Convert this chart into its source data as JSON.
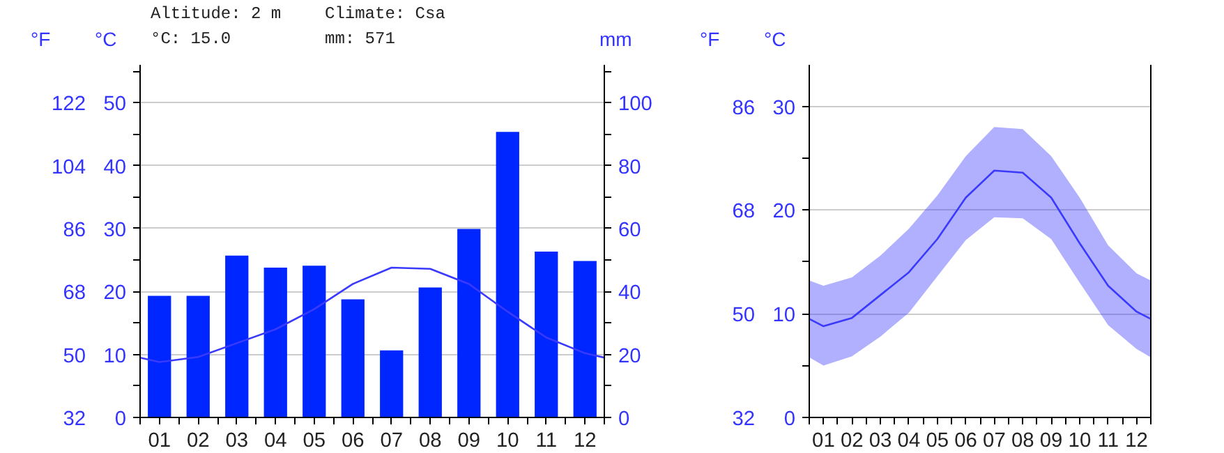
{
  "chart_data": [
    {
      "type": "bar",
      "annotations": [
        "Altitude: 2 m",
        "Climate: Csa",
        "°C: 15.0",
        "mm: 571"
      ],
      "ylabel": "°C",
      "y2label": "mm",
      "y3label": "°F",
      "x": [
        1,
        2,
        3,
        4,
        5,
        6,
        7,
        8,
        9,
        10,
        11,
        12
      ],
      "xlim": [
        0.5,
        12.5
      ],
      "xticks": [
        {
          "value": 0.5,
          "label": null
        },
        {
          "value": 1,
          "label": "01"
        },
        {
          "value": 1.5,
          "label": null
        },
        {
          "value": 2,
          "label": "02"
        },
        {
          "value": 2.5,
          "label": null
        },
        {
          "value": 3,
          "label": "03"
        },
        {
          "value": 3.5,
          "label": null
        },
        {
          "value": 4,
          "label": "04"
        },
        {
          "value": 4.5,
          "label": null
        },
        {
          "value": 5,
          "label": "05"
        },
        {
          "value": 5.5,
          "label": null
        },
        {
          "value": 6,
          "label": "06"
        },
        {
          "value": 6.5,
          "label": null
        },
        {
          "value": 7,
          "label": "07"
        },
        {
          "value": 7.5,
          "label": null
        },
        {
          "value": 8,
          "label": "08"
        },
        {
          "value": 8.5,
          "label": null
        },
        {
          "value": 9,
          "label": "09"
        },
        {
          "value": 9.5,
          "label": null
        },
        {
          "value": 10,
          "label": "10"
        },
        {
          "value": 10.5,
          "label": null
        },
        {
          "value": 11,
          "label": "11"
        },
        {
          "value": 11.5,
          "label": null
        },
        {
          "value": 12,
          "label": "12"
        },
        {
          "value": 12.5,
          "label": null
        }
      ],
      "ylim": [
        0,
        56
      ],
      "yticks": [
        0,
        {
          "value": 5,
          "label": null
        },
        10,
        {
          "value": 15,
          "label": null
        },
        20,
        {
          "value": 25,
          "label": null
        },
        30,
        {
          "value": 35,
          "label": null
        },
        40,
        {
          "value": 45,
          "label": null
        },
        50,
        {
          "value": 55,
          "label": null
        }
      ],
      "y2lim": [
        0,
        112
      ],
      "y2ticks": [
        0,
        {
          "value": 10,
          "label": null
        },
        20,
        {
          "value": 30,
          "label": null
        },
        40,
        {
          "value": 50,
          "label": null
        },
        60,
        {
          "value": 70,
          "label": null
        },
        80,
        {
          "value": 90,
          "label": null
        },
        100,
        {
          "value": 110,
          "label": null
        }
      ],
      "y3lim": [
        32,
        132.8
      ],
      "y3ticks": [
        32,
        50,
        68,
        86,
        104,
        122
      ],
      "grid": "y",
      "series": [
        {
          "axis": "y2",
          "color": "#0026ff",
          "values": [
            38.6,
            38.6,
            51.4,
            47.6,
            48.2,
            37.5,
            21.3,
            41.3,
            59.9,
            90.7,
            52.7,
            49.7
          ]
        },
        {
          "type": "line",
          "color": "#3a3aff",
          "x": [
            0.5,
            1,
            2,
            3,
            4,
            5,
            6,
            7,
            8,
            9,
            10,
            11,
            12,
            12.5
          ],
          "values": [
            9.5,
            8.8,
            9.6,
            11.8,
            14.0,
            17.2,
            21.2,
            23.8,
            23.6,
            21.2,
            16.8,
            12.7,
            10.2,
            9.5
          ]
        }
      ]
    },
    {
      "type": "line",
      "ylabel": "°C",
      "y3label": "°F",
      "x": [
        0.5,
        1,
        2,
        3,
        4,
        5,
        6,
        7,
        8,
        9,
        10,
        11,
        12,
        12.5
      ],
      "xlim": [
        0.5,
        12.5
      ],
      "xticks": [
        {
          "value": 0.5,
          "label": null
        },
        {
          "value": 1,
          "label": "01"
        },
        {
          "value": 1.5,
          "label": null
        },
        {
          "value": 2,
          "label": "02"
        },
        {
          "value": 2.5,
          "label": null
        },
        {
          "value": 3,
          "label": "03"
        },
        {
          "value": 3.5,
          "label": null
        },
        {
          "value": 4,
          "label": "04"
        },
        {
          "value": 4.5,
          "label": null
        },
        {
          "value": 5,
          "label": "05"
        },
        {
          "value": 5.5,
          "label": null
        },
        {
          "value": 6,
          "label": "06"
        },
        {
          "value": 6.5,
          "label": null
        },
        {
          "value": 7,
          "label": "07"
        },
        {
          "value": 7.5,
          "label": null
        },
        {
          "value": 8,
          "label": "08"
        },
        {
          "value": 8.5,
          "label": null
        },
        {
          "value": 9,
          "label": "09"
        },
        {
          "value": 9.5,
          "label": null
        },
        {
          "value": 10,
          "label": "10"
        },
        {
          "value": 10.5,
          "label": null
        },
        {
          "value": 11,
          "label": "11"
        },
        {
          "value": 11.5,
          "label": null
        },
        {
          "value": 12,
          "label": "12"
        },
        {
          "value": 12.5,
          "label": null
        }
      ],
      "ylim": [
        0,
        34
      ],
      "yticks": [
        0,
        {
          "value": 5,
          "label": null
        },
        10,
        {
          "value": 15,
          "label": null
        },
        20,
        {
          "value": 25,
          "label": null
        },
        30
      ],
      "y3lim": [
        32,
        93.2
      ],
      "y3ticks": [
        32,
        50,
        68,
        86
      ],
      "grid": "y",
      "series": [
        {
          "color": "#3a3aff",
          "values": [
            9.5,
            8.8,
            9.6,
            11.8,
            14.0,
            17.2,
            21.2,
            23.8,
            23.6,
            21.2,
            16.8,
            12.7,
            10.2,
            9.5
          ],
          "lower": [
            5.8,
            5.0,
            5.9,
            7.8,
            10.1,
            13.6,
            17.1,
            19.3,
            19.2,
            17.2,
            13.0,
            8.9,
            6.6,
            5.8
          ],
          "upper": [
            13.2,
            12.7,
            13.5,
            15.6,
            18.2,
            21.4,
            25.2,
            28.0,
            27.8,
            25.2,
            21.2,
            16.6,
            13.9,
            13.2
          ]
        }
      ]
    }
  ]
}
